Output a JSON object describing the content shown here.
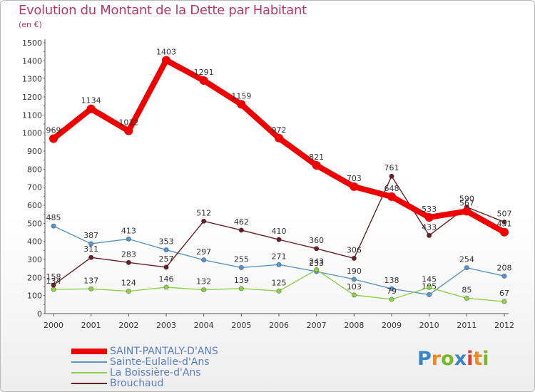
{
  "header": {
    "title": "Evolution du Montant de la Dette par Habitant",
    "subtitle": "(en €)"
  },
  "logo": {
    "text": "Proxiti",
    "letters": [
      {
        "char": "P",
        "color": "#3a84c9"
      },
      {
        "char": "r",
        "color": "#f08a24"
      },
      {
        "char": "o",
        "color": "#79b829"
      },
      {
        "char": "x",
        "color": "#3a84c9"
      },
      {
        "char": "i",
        "color": "#e23a2e"
      },
      {
        "char": "t",
        "color": "#f08a24"
      },
      {
        "char": "i",
        "color": "#79b829"
      }
    ]
  },
  "chart_data": {
    "type": "line",
    "title": "Evolution du Montant de la Dette par Habitant",
    "subtitle": "(en €)",
    "xlabel": "",
    "ylabel": "",
    "x": [
      "2000",
      "2001",
      "2002",
      "2003",
      "2004",
      "2005",
      "2006",
      "2007",
      "2008",
      "2009",
      "2010",
      "2011",
      "2012"
    ],
    "ylim": [
      0,
      1500
    ],
    "yticks": [
      0,
      100,
      200,
      300,
      400,
      500,
      600,
      700,
      800,
      900,
      1000,
      1100,
      1200,
      1300,
      1400,
      1500
    ],
    "grid": false,
    "legend_position": "bottom-left",
    "series": [
      {
        "name": "SAINT-PANTALY-D'ANS",
        "color": "#ee0000",
        "emphasis": true,
        "values": [
          969,
          1134,
          1012,
          1403,
          1291,
          1159,
          972,
          821,
          703,
          648,
          533,
          567,
          451
        ]
      },
      {
        "name": "Sainte-Eulalie-d'Ans",
        "color": "#5b95c8",
        "emphasis": false,
        "values": [
          485,
          387,
          413,
          353,
          297,
          255,
          271,
          233,
          190,
          138,
          105,
          254,
          208
        ]
      },
      {
        "name": "La Boissière-d'Ans",
        "color": "#8ed049",
        "emphasis": false,
        "values": [
          134,
          137,
          124,
          146,
          132,
          139,
          125,
          243,
          103,
          79,
          145,
          85,
          67
        ]
      },
      {
        "name": "Brouchaud",
        "color": "#6a1f26",
        "emphasis": false,
        "values": [
          158,
          311,
          283,
          257,
          512,
          462,
          410,
          360,
          306,
          761,
          433,
          590,
          507
        ]
      }
    ]
  }
}
